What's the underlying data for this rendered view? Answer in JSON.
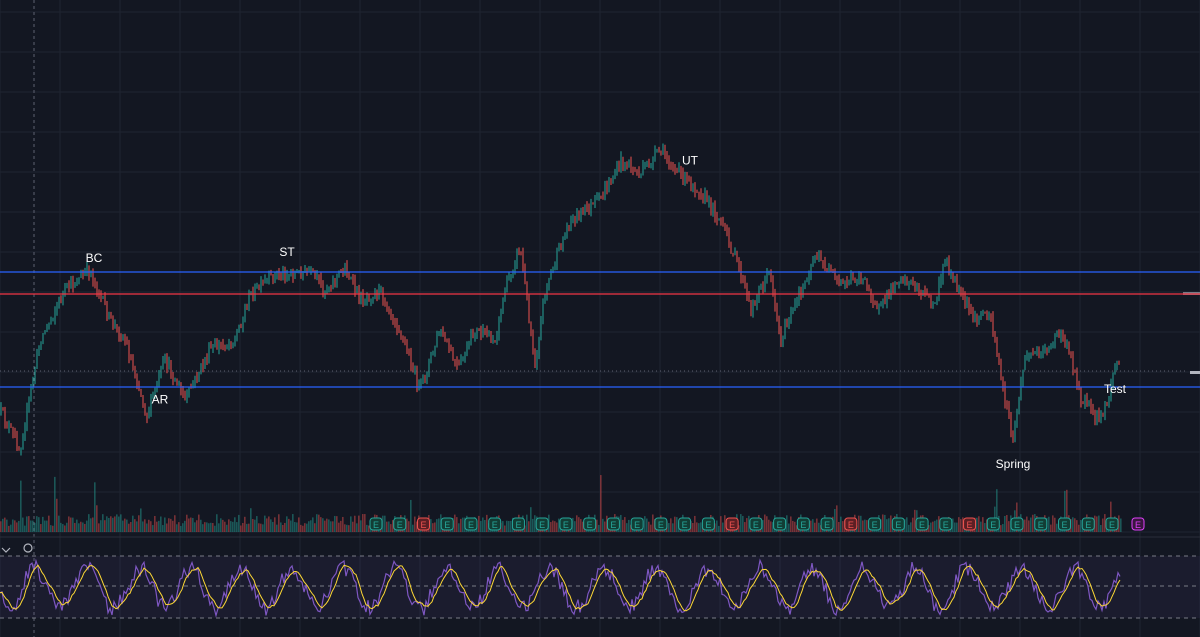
{
  "chart_data": {
    "type": "candlestick",
    "theme": {
      "background": "#131722",
      "grid": "#1f2431",
      "up_color": "#26a69a",
      "down_color": "#ef5350",
      "support_resistance_color": "#2962ff",
      "mid_line_color": "#f23645",
      "oscillator_color": "#7e57c2",
      "oscillator_signal_color": "#fdd835",
      "earnings_marker_color": "#26a69a",
      "dividend_marker_color": "#e040fb"
    },
    "price_path": [
      [
        0,
        410
      ],
      [
        20,
        450
      ],
      [
        40,
        340
      ],
      [
        65,
        290
      ],
      [
        90,
        270
      ],
      [
        110,
        320
      ],
      [
        125,
        340
      ],
      [
        147,
        415
      ],
      [
        165,
        360
      ],
      [
        185,
        400
      ],
      [
        210,
        350
      ],
      [
        235,
        340
      ],
      [
        250,
        295
      ],
      [
        275,
        275
      ],
      [
        310,
        272
      ],
      [
        325,
        290
      ],
      [
        345,
        268
      ],
      [
        360,
        300
      ],
      [
        380,
        290
      ],
      [
        400,
        330
      ],
      [
        420,
        390
      ],
      [
        440,
        330
      ],
      [
        458,
        370
      ],
      [
        475,
        330
      ],
      [
        495,
        340
      ],
      [
        505,
        290
      ],
      [
        520,
        245
      ],
      [
        535,
        365
      ],
      [
        545,
        290
      ],
      [
        570,
        220
      ],
      [
        600,
        200
      ],
      [
        622,
        160
      ],
      [
        640,
        175
      ],
      [
        660,
        150
      ],
      [
        680,
        175
      ],
      [
        700,
        190
      ],
      [
        720,
        220
      ],
      [
        740,
        270
      ],
      [
        750,
        310
      ],
      [
        770,
        270
      ],
      [
        780,
        340
      ],
      [
        800,
        295
      ],
      [
        815,
        255
      ],
      [
        840,
        285
      ],
      [
        860,
        275
      ],
      [
        880,
        310
      ],
      [
        900,
        275
      ],
      [
        920,
        290
      ],
      [
        935,
        305
      ],
      [
        945,
        260
      ],
      [
        960,
        295
      ],
      [
        975,
        320
      ],
      [
        990,
        310
      ],
      [
        1000,
        375
      ],
      [
        1013,
        440
      ],
      [
        1025,
        355
      ],
      [
        1045,
        350
      ],
      [
        1058,
        335
      ],
      [
        1068,
        345
      ],
      [
        1080,
        395
      ],
      [
        1100,
        420
      ],
      [
        1108,
        400
      ],
      [
        1115,
        365
      ]
    ],
    "horizontal_lines": {
      "resistance": 272,
      "mid": 294,
      "support": 387
    },
    "annotations": [
      {
        "text": "BC",
        "at": 94
      },
      {
        "text": "AR",
        "at": 160
      },
      {
        "text": "ST",
        "at": 287
      },
      {
        "text": "UT",
        "at": 690
      },
      {
        "text": "Spring",
        "at": 1013
      },
      {
        "text": "Test",
        "at": 1115
      }
    ],
    "volume": {
      "baseline": "low",
      "spikes": [
        20,
        55,
        95,
        140,
        250,
        410,
        530,
        600,
        835,
        915,
        995,
        1015,
        1065,
        1110
      ]
    },
    "event_markers": {
      "earnings": [
        "E",
        "E",
        "E",
        "E",
        "E",
        "E",
        "E",
        "E",
        "E",
        "E",
        "E",
        "E",
        "E",
        "E",
        "E",
        "E",
        "E",
        "E",
        "E",
        "E",
        "E",
        "E",
        "E",
        "E",
        "E",
        "E",
        "E",
        "E",
        "E",
        "E",
        "E",
        "E"
      ],
      "dividend": [
        "E"
      ]
    },
    "oscillator": {
      "levels": [
        "upper",
        "middle",
        "lower"
      ],
      "series": [
        "oscillator",
        "signal"
      ]
    },
    "grid": true
  }
}
